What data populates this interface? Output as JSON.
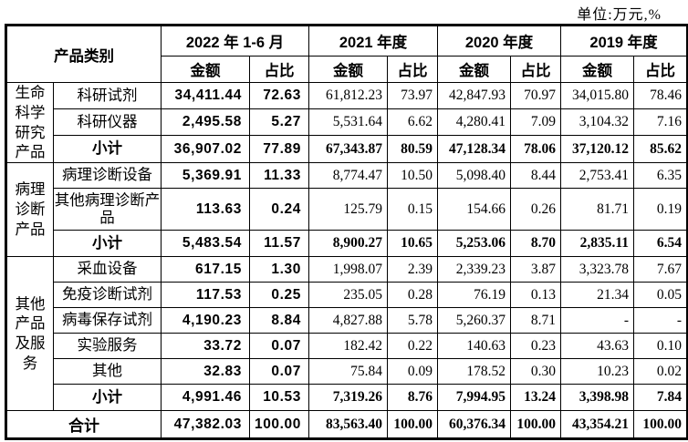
{
  "unit_label": "单位:万元,%",
  "table": {
    "headers": {
      "product_category": "产品类别",
      "amount": "金额",
      "ratio": "占比",
      "periods": [
        "2022 年 1-6 月",
        "2021 年度",
        "2020 年度",
        "2019 年度"
      ]
    },
    "groups": [
      {
        "label": "生命科学研究产品",
        "label_lines": [
          "生命",
          "科学",
          "研究",
          "产品"
        ],
        "rows": [
          {
            "label": "科研试剂",
            "subtotal": false,
            "tall": false,
            "values": [
              "34,411.44",
              "72.63",
              "61,812.23",
              "73.97",
              "42,847.93",
              "70.97",
              "34,015.80",
              "78.46"
            ]
          },
          {
            "label": "科研仪器",
            "subtotal": false,
            "tall": false,
            "values": [
              "2,495.58",
              "5.27",
              "5,531.64",
              "6.62",
              "4,280.41",
              "7.09",
              "3,104.32",
              "7.16"
            ]
          },
          {
            "label": "小计",
            "subtotal": true,
            "tall": false,
            "values": [
              "36,907.02",
              "77.89",
              "67,343.87",
              "80.59",
              "47,128.34",
              "78.06",
              "37,120.12",
              "85.62"
            ]
          }
        ]
      },
      {
        "label": "病理诊断产品",
        "label_lines": [
          "病理",
          "诊断",
          "产品"
        ],
        "rows": [
          {
            "label": "病理诊断设备",
            "subtotal": false,
            "tall": false,
            "values": [
              "5,369.91",
              "11.33",
              "8,774.47",
              "10.50",
              "5,098.40",
              "8.44",
              "2,753.41",
              "6.35"
            ]
          },
          {
            "label": "其他病理诊断产品",
            "subtotal": false,
            "tall": true,
            "values": [
              "113.63",
              "0.24",
              "125.79",
              "0.15",
              "154.66",
              "0.26",
              "81.71",
              "0.19"
            ]
          },
          {
            "label": "小计",
            "subtotal": true,
            "tall": false,
            "values": [
              "5,483.54",
              "11.57",
              "8,900.27",
              "10.65",
              "5,253.06",
              "8.70",
              "2,835.11",
              "6.54"
            ]
          }
        ]
      },
      {
        "label": "其他产品及服务",
        "label_lines": [
          "其他",
          "产品",
          "及服",
          "务"
        ],
        "rows": [
          {
            "label": "采血设备",
            "subtotal": false,
            "tall": false,
            "values": [
              "617.15",
              "1.30",
              "1,998.07",
              "2.39",
              "2,339.23",
              "3.87",
              "3,323.78",
              "7.67"
            ]
          },
          {
            "label": "免疫诊断试剂",
            "subtotal": false,
            "tall": false,
            "values": [
              "117.53",
              "0.25",
              "235.05",
              "0.28",
              "76.19",
              "0.13",
              "21.34",
              "0.05"
            ]
          },
          {
            "label": "病毒保存试剂",
            "subtotal": false,
            "tall": false,
            "values": [
              "4,190.23",
              "8.84",
              "4,827.88",
              "5.78",
              "5,260.37",
              "8.71",
              "-",
              "-"
            ]
          },
          {
            "label": "实验服务",
            "subtotal": false,
            "tall": false,
            "values": [
              "33.72",
              "0.07",
              "182.42",
              "0.22",
              "140.63",
              "0.23",
              "43.63",
              "0.10"
            ]
          },
          {
            "label": "其他",
            "subtotal": false,
            "tall": false,
            "values": [
              "32.83",
              "0.07",
              "75.84",
              "0.09",
              "178.52",
              "0.30",
              "10.23",
              "0.02"
            ]
          },
          {
            "label": "小计",
            "subtotal": true,
            "tall": false,
            "values": [
              "4,991.46",
              "10.53",
              "7,319.26",
              "8.76",
              "7,994.95",
              "13.24",
              "3,398.98",
              "7.84"
            ]
          }
        ]
      }
    ],
    "total_row": {
      "label": "合计",
      "values": [
        "47,382.03",
        "100.00",
        "83,563.40",
        "100.00",
        "60,376.34",
        "100.00",
        "43,354.21",
        "100.00"
      ]
    }
  }
}
